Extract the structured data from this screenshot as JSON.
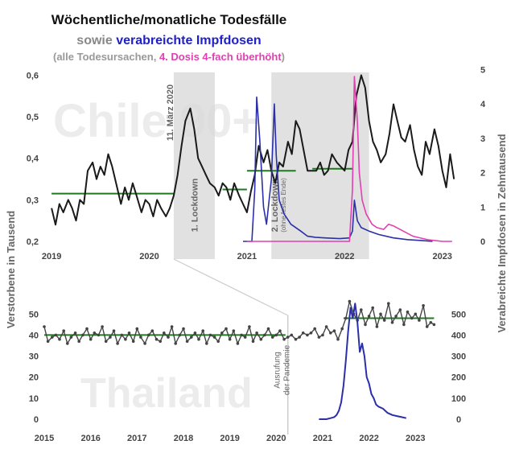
{
  "title": {
    "line1": "Wöchentliche/monatliche Todesfälle",
    "line2_prefix": "sowie ",
    "line2_highlight": "verabreichte Impfdosen",
    "line3_open": "(alle Todesursachen, ",
    "line3_pink": "4. Dosis 4-fach überhöht",
    "line3_close": ")"
  },
  "colors": {
    "deaths": "#1a1a1a",
    "thailand_deaths": "#444444",
    "doses": "#2b2fa8",
    "fourth_dose": "#e040b0",
    "average": "#1f7a1f",
    "lockdown": "#d9d9d9",
    "watermark": "#ececec"
  },
  "axis_labels": {
    "left": "Verstorbene in Tausend",
    "right": "Verabreichte Impfdosen in Zehntausend"
  },
  "chart_data": [
    {
      "type": "line",
      "watermark": "Chile 90+",
      "x_range": [
        2018.9,
        2023.25
      ],
      "x_ticks": [
        "2019",
        "2020",
        "2021",
        "2022",
        "2023"
      ],
      "y_left_ticks": [
        "0,2",
        "0,3",
        "0,4",
        "0,5",
        "0,6"
      ],
      "y_left_range": [
        0.2,
        0.63
      ],
      "y_right_ticks": [
        "0",
        "1",
        "2",
        "3",
        "4",
        "5"
      ],
      "y_right_range": [
        0,
        5.2
      ],
      "annotations": {
        "march_2020": "11. März 2020",
        "lockdown1": "1. Lockdown",
        "lockdown2": "2. Lockdown",
        "lockdown2_note": "(ohne festes Ende)"
      },
      "shaded_periods": [
        [
          2020.25,
          2020.67
        ],
        [
          2021.25,
          2022.25
        ]
      ],
      "averages": [
        {
          "x": [
            2019.0,
            2020.25
          ],
          "y": 0.315
        },
        {
          "x": [
            2020.75,
            2021.0
          ],
          "y": 0.325
        },
        {
          "x": [
            2021.0,
            2021.5
          ],
          "y": 0.37
        },
        {
          "x": [
            2021.67,
            2022.08
          ],
          "y": 0.375
        }
      ],
      "series": [
        {
          "role": "deaths",
          "x": [
            2019.0,
            2019.04,
            2019.08,
            2019.12,
            2019.17,
            2019.21,
            2019.25,
            2019.29,
            2019.33,
            2019.37,
            2019.42,
            2019.46,
            2019.5,
            2019.54,
            2019.58,
            2019.62,
            2019.67,
            2019.71,
            2019.75,
            2019.79,
            2019.83,
            2019.87,
            2019.92,
            2019.96,
            2020.0,
            2020.04,
            2020.08,
            2020.12,
            2020.17,
            2020.21,
            2020.25,
            2020.29,
            2020.33,
            2020.37,
            2020.42,
            2020.46,
            2020.5,
            2020.54,
            2020.58,
            2020.62,
            2020.67,
            2020.71,
            2020.75,
            2020.79,
            2020.83,
            2020.87,
            2020.92,
            2020.96,
            2021.0,
            2021.04,
            2021.08,
            2021.12,
            2021.17,
            2021.21,
            2021.25,
            2021.29,
            2021.33,
            2021.37,
            2021.42,
            2021.46,
            2021.5,
            2021.54,
            2021.58,
            2021.62,
            2021.67,
            2021.71,
            2021.75,
            2021.79,
            2021.83,
            2021.87,
            2021.92,
            2021.96,
            2022.0,
            2022.04,
            2022.08,
            2022.12,
            2022.17,
            2022.21,
            2022.25,
            2022.29,
            2022.33,
            2022.37,
            2022.42,
            2022.46,
            2022.5,
            2022.54,
            2022.58,
            2022.62,
            2022.67,
            2022.71,
            2022.75,
            2022.79,
            2022.83,
            2022.87,
            2022.92,
            2022.96,
            2023.0,
            2023.04,
            2023.08,
            2023.12
          ],
          "y": [
            0.28,
            0.24,
            0.29,
            0.27,
            0.3,
            0.28,
            0.25,
            0.3,
            0.29,
            0.37,
            0.39,
            0.35,
            0.38,
            0.36,
            0.41,
            0.38,
            0.33,
            0.29,
            0.33,
            0.3,
            0.34,
            0.31,
            0.27,
            0.3,
            0.29,
            0.26,
            0.3,
            0.28,
            0.26,
            0.28,
            0.31,
            0.36,
            0.43,
            0.49,
            0.52,
            0.47,
            0.4,
            0.38,
            0.36,
            0.34,
            0.33,
            0.31,
            0.34,
            0.33,
            0.3,
            0.34,
            0.31,
            0.29,
            0.27,
            0.32,
            0.36,
            0.43,
            0.39,
            0.42,
            0.37,
            0.34,
            0.39,
            0.38,
            0.44,
            0.41,
            0.49,
            0.47,
            0.42,
            0.37,
            0.37,
            0.37,
            0.39,
            0.36,
            0.37,
            0.41,
            0.39,
            0.38,
            0.37,
            0.42,
            0.44,
            0.55,
            0.6,
            0.57,
            0.49,
            0.44,
            0.42,
            0.39,
            0.41,
            0.46,
            0.53,
            0.49,
            0.45,
            0.44,
            0.48,
            0.42,
            0.38,
            0.36,
            0.44,
            0.41,
            0.47,
            0.43,
            0.37,
            0.33,
            0.41,
            0.35
          ]
        },
        {
          "role": "doses",
          "x": [
            2020.96,
            2021.05,
            2021.08,
            2021.1,
            2021.13,
            2021.17,
            2021.2,
            2021.25,
            2021.28,
            2021.3,
            2021.33,
            2021.38,
            2021.45,
            2021.55,
            2021.62,
            2021.7,
            2021.8,
            2021.95,
            2022.05,
            2022.08,
            2022.1,
            2022.13,
            2022.17,
            2022.25,
            2022.35,
            2022.5,
            2022.65,
            2022.8,
            2022.9
          ],
          "y": [
            0,
            0,
            1.5,
            4.2,
            3.0,
            1.0,
            0.5,
            1.8,
            4.0,
            2.5,
            1.2,
            0.8,
            0.5,
            0.3,
            0.15,
            0.12,
            0.1,
            0.08,
            0.1,
            0.3,
            1.2,
            0.6,
            0.4,
            0.3,
            0.2,
            0.1,
            0.05,
            0.02,
            0
          ]
        },
        {
          "role": "fourth_dose",
          "x": [
            2021.0,
            2022.05,
            2022.08,
            2022.1,
            2022.13,
            2022.15,
            2022.18,
            2022.22,
            2022.28,
            2022.33,
            2022.4,
            2022.45,
            2022.5,
            2022.6,
            2022.7,
            2022.85,
            2023.0,
            2023.1
          ],
          "y": [
            0,
            0,
            1.5,
            4.8,
            3.5,
            2.0,
            1.2,
            0.8,
            0.5,
            0.4,
            0.35,
            0.5,
            0.45,
            0.3,
            0.15,
            0.05,
            0,
            0
          ]
        }
      ]
    },
    {
      "type": "line",
      "watermark": "Thailand",
      "x_range": [
        2015.0,
        2023.55
      ],
      "x_ticks": [
        "2015",
        "2016",
        "2017",
        "2018",
        "2019",
        "2020",
        "2021",
        "2022",
        "2023"
      ],
      "y_left_ticks": [
        "0",
        "10",
        "20",
        "30",
        "40",
        "50"
      ],
      "y_left_range": [
        0,
        57
      ],
      "y_right_ticks": [
        "0",
        "100",
        "200",
        "300",
        "400",
        "500"
      ],
      "y_right_range": [
        0,
        570
      ],
      "annotations": {
        "pandemic_line1": "Ausrufung",
        "pandemic_line2": "der Pandemie"
      },
      "event_x": 2020.25,
      "averages": [
        {
          "x": [
            2015.0,
            2020.2
          ],
          "y": 40
        },
        {
          "x": [
            2021.45,
            2023.4
          ],
          "y": 48
        }
      ],
      "series": [
        {
          "role": "deaths",
          "x": [
            2015.0,
            2015.08,
            2015.17,
            2015.25,
            2015.33,
            2015.42,
            2015.5,
            2015.58,
            2015.67,
            2015.75,
            2015.83,
            2015.92,
            2016.0,
            2016.08,
            2016.17,
            2016.25,
            2016.33,
            2016.42,
            2016.5,
            2016.58,
            2016.67,
            2016.75,
            2016.83,
            2016.92,
            2017.0,
            2017.08,
            2017.17,
            2017.25,
            2017.33,
            2017.42,
            2017.5,
            2017.58,
            2017.67,
            2017.75,
            2017.83,
            2017.92,
            2018.0,
            2018.08,
            2018.17,
            2018.25,
            2018.33,
            2018.42,
            2018.5,
            2018.58,
            2018.67,
            2018.75,
            2018.83,
            2018.92,
            2019.0,
            2019.08,
            2019.17,
            2019.25,
            2019.33,
            2019.42,
            2019.5,
            2019.58,
            2019.67,
            2019.75,
            2019.83,
            2019.92,
            2020.0,
            2020.08,
            2020.17,
            2020.25,
            2020.33,
            2020.42,
            2020.5,
            2020.58,
            2020.67,
            2020.75,
            2020.83,
            2020.92,
            2021.0,
            2021.08,
            2021.17,
            2021.25,
            2021.33,
            2021.42,
            2021.5,
            2021.58,
            2021.67,
            2021.75,
            2021.83,
            2021.92,
            2022.0,
            2022.08,
            2022.17,
            2022.25,
            2022.33,
            2022.42,
            2022.5,
            2022.58,
            2022.67,
            2022.75,
            2022.83,
            2022.92,
            2023.0,
            2023.08,
            2023.17,
            2023.25,
            2023.33,
            2023.4
          ],
          "y": [
            44,
            37,
            39,
            40,
            38,
            42,
            36,
            39,
            41,
            37,
            40,
            43,
            38,
            41,
            40,
            44,
            37,
            39,
            42,
            36,
            40,
            38,
            41,
            37,
            43,
            39,
            36,
            40,
            42,
            38,
            37,
            41,
            39,
            44,
            36,
            40,
            43,
            37,
            39,
            41,
            38,
            42,
            36,
            40,
            39,
            37,
            41,
            43,
            38,
            42,
            36,
            40,
            39,
            44,
            37,
            41,
            38,
            40,
            43,
            39,
            40,
            42,
            38,
            39,
            40,
            38,
            39,
            41,
            40,
            41,
            43,
            39,
            40,
            44,
            41,
            42,
            38,
            43,
            48,
            56,
            50,
            47,
            52,
            45,
            49,
            53,
            44,
            50,
            47,
            55,
            46,
            49,
            52,
            45,
            51,
            48,
            50,
            47,
            54,
            44,
            46,
            45
          ]
        },
        {
          "role": "doses",
          "x": [
            2020.92,
            2021.0,
            2021.08,
            2021.17,
            2021.25,
            2021.3,
            2021.35,
            2021.4,
            2021.45,
            2021.5,
            2021.55,
            2021.6,
            2021.65,
            2021.7,
            2021.75,
            2021.8,
            2021.85,
            2021.9,
            2021.95,
            2022.0,
            2022.05,
            2022.1,
            2022.15,
            2022.2,
            2022.3,
            2022.4,
            2022.5,
            2022.6,
            2022.7,
            2022.8
          ],
          "y": [
            0,
            0,
            0,
            5,
            10,
            20,
            40,
            80,
            160,
            280,
            420,
            530,
            480,
            550,
            460,
            320,
            360,
            300,
            200,
            170,
            120,
            100,
            70,
            60,
            50,
            30,
            20,
            15,
            10,
            5
          ]
        }
      ]
    }
  ]
}
